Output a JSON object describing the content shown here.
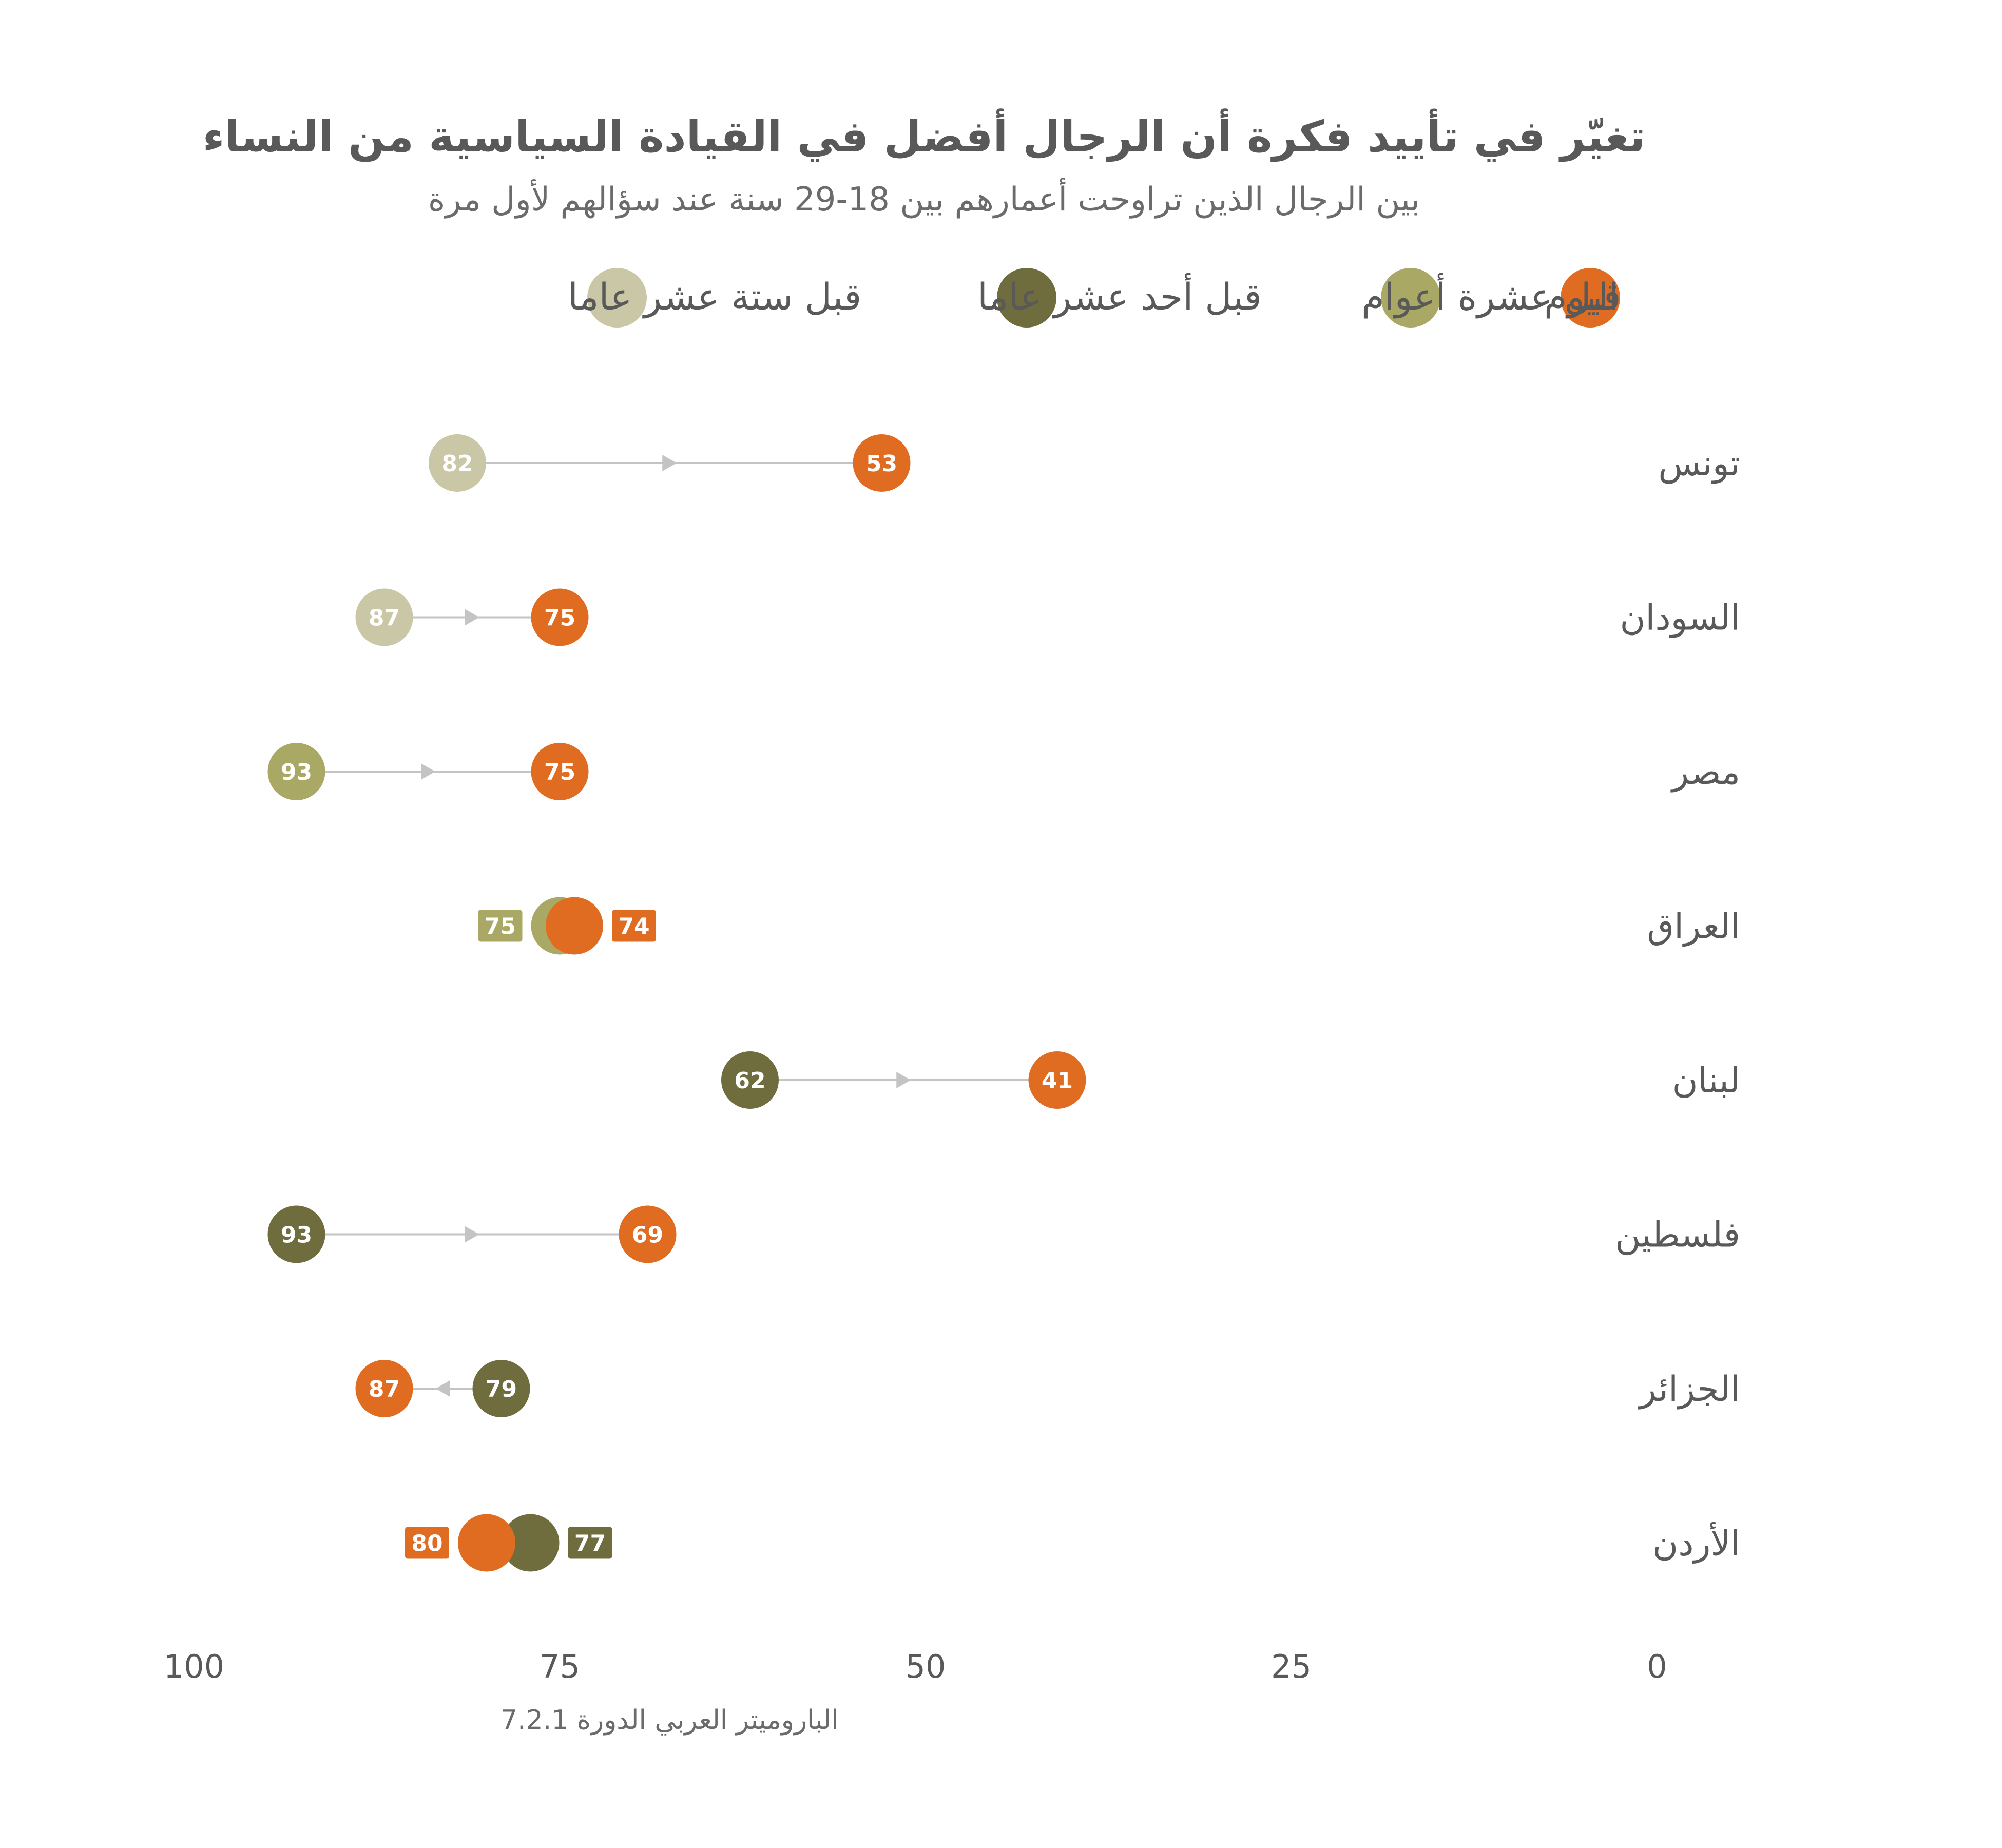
{
  "title": "تغيّر في تأييد فكرة أن الرجال أفضل في القيادة السياسية من النساء",
  "subtitle": "بين الرجال الذين تراوحت أعمارهم بين 18-29 سنة عند سؤالهم لأول مرة",
  "source": "الباروميتر العربي الدورة 7.2.1",
  "colors": {
    "today": "#e06c22",
    "ten_years": "#a9a865",
    "eleven_years": "#6f6c3e",
    "sixteen_years": "#c9c7a5",
    "connector": "#c4c4c4",
    "text": "#595959"
  },
  "legend": [
    {
      "key": "today",
      "label": "اليوم"
    },
    {
      "key": "ten_years",
      "label": "قبل عشرة أعوام"
    },
    {
      "key": "eleven_years",
      "label": "قبل أحد عشر عاما"
    },
    {
      "key": "sixteen_years",
      "label": "قبل ستة عشر عاما"
    }
  ],
  "chart_data": {
    "type": "dot-arrow",
    "title": "تغيّر في تأييد فكرة أن الرجال أفضل في القيادة السياسية من النساء",
    "subtitle": "بين الرجال الذين تراوحت أعمارهم بين 18-29 سنة عند سؤالهم لأول مرة",
    "x_axis": {
      "range": [
        100,
        0
      ],
      "ticks": [
        100,
        75,
        50,
        25,
        0
      ],
      "direction": "reversed"
    },
    "legend_position": "top",
    "grid": false,
    "rows": [
      {
        "country": "تونس",
        "before": 82,
        "before_key": "sixteen_years",
        "today": 53
      },
      {
        "country": "السودان",
        "before": 87,
        "before_key": "sixteen_years",
        "today": 75
      },
      {
        "country": "مصر",
        "before": 93,
        "before_key": "ten_years",
        "today": 75
      },
      {
        "country": "العراق",
        "before": 75,
        "before_key": "ten_years",
        "today": 74
      },
      {
        "country": "لبنان",
        "before": 62,
        "before_key": "eleven_years",
        "today": 41
      },
      {
        "country": "فلسطين",
        "before": 93,
        "before_key": "eleven_years",
        "today": 69
      },
      {
        "country": "الجزائر",
        "before": 79,
        "before_key": "eleven_years",
        "today": 87
      },
      {
        "country": "الأردن",
        "before": 77,
        "before_key": "eleven_years",
        "today": 80
      }
    ]
  }
}
